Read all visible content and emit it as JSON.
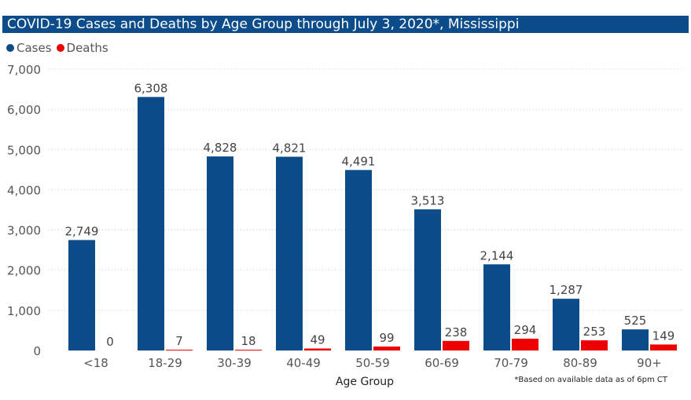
{
  "chart_data": {
    "type": "bar",
    "title": "COVID-19 Cases and Deaths by Age Group through July 3, 2020*, Mississippi",
    "xlabel": "Age Group",
    "ylabel": "",
    "ylim": [
      0,
      7000
    ],
    "yticks": [
      "0",
      "1,000",
      "2,000",
      "3,000",
      "4,000",
      "5,000",
      "6,000",
      "7,000"
    ],
    "ytick_values": [
      0,
      1000,
      2000,
      3000,
      4000,
      5000,
      6000,
      7000
    ],
    "grid": true,
    "legend_position": "top-left",
    "categories": [
      "<18",
      "18-29",
      "30-39",
      "40-49",
      "50-59",
      "60-69",
      "70-79",
      "80-89",
      "90+"
    ],
    "series": [
      {
        "name": "Cases",
        "color": "#0d4c8a",
        "values": [
          2749,
          6308,
          4828,
          4821,
          4491,
          3513,
          2144,
          1287,
          525
        ],
        "labels": [
          "2,749",
          "6,308",
          "4,828",
          "4,821",
          "4,491",
          "3,513",
          "2,144",
          "1,287",
          "525"
        ]
      },
      {
        "name": "Deaths",
        "color": "#ee0000",
        "values": [
          0,
          7,
          18,
          49,
          99,
          238,
          294,
          253,
          149
        ],
        "labels": [
          "0",
          "7",
          "18",
          "49",
          "99",
          "238",
          "294",
          "253",
          "149"
        ]
      }
    ]
  },
  "footnote": "*Based on available data as of 6pm CT"
}
